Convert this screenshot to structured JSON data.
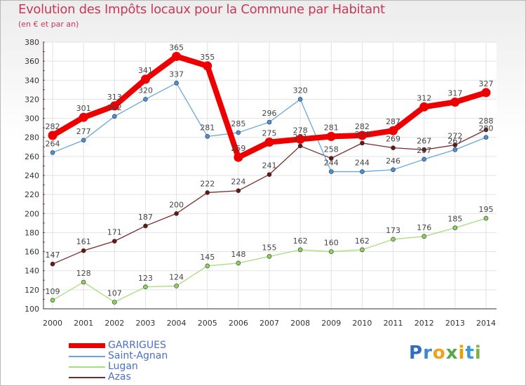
{
  "header": {
    "title": "Evolution des Impôts locaux pour la Commune par Habitant",
    "subtitle": "(en € et par an)"
  },
  "logo": {
    "text": "Proxiti"
  },
  "chart_data": {
    "type": "line",
    "title": "Evolution des Impôts locaux pour la Commune par Habitant",
    "subtitle": "(en € et par an)",
    "x": [
      "2000",
      "2001",
      "2002",
      "2003",
      "2004",
      "2005",
      "2006",
      "2007",
      "2008",
      "2009",
      "2010",
      "2011",
      "2012",
      "2013",
      "2014"
    ],
    "ylim": [
      100,
      380
    ],
    "yticks": [
      100,
      120,
      140,
      160,
      180,
      200,
      220,
      240,
      260,
      280,
      300,
      320,
      340,
      360,
      380
    ],
    "grid": true,
    "legend_position": "bottom-left",
    "series": [
      {
        "name": "GARRIGUES",
        "color": "#ee0000",
        "line_color": "#ee0000",
        "emphasis": true,
        "values": [
          282,
          301,
          313,
          341,
          365,
          355,
          259,
          275,
          278,
          281,
          282,
          287,
          312,
          317,
          327
        ],
        "labels": [
          "282",
          "301",
          "313",
          "341",
          "365",
          "355",
          "259",
          "275",
          "278",
          "281",
          "282",
          "287",
          "312",
          "317",
          "327"
        ]
      },
      {
        "name": "Saint-Agnan",
        "color": "#4a90d9",
        "line_color": "#6aa6dc",
        "values": [
          264,
          277,
          302,
          320,
          337,
          281,
          285,
          296,
          320,
          244,
          244,
          246,
          257,
          267,
          280
        ],
        "labels": [
          "264",
          "277",
          "302",
          "320",
          "337",
          "281",
          "285",
          "296",
          "320",
          "244",
          "244",
          "246",
          "257",
          "267",
          "280"
        ]
      },
      {
        "name": "Lugan",
        "color": "#8cd35a",
        "line_color": "#a6dd7e",
        "values": [
          109,
          128,
          107,
          123,
          124,
          145,
          148,
          155,
          162,
          160,
          162,
          173,
          176,
          185,
          195
        ],
        "labels": [
          "109",
          "128",
          "107",
          "123",
          "124",
          "145",
          "148",
          "155",
          "162",
          "160",
          "162",
          "173",
          "176",
          "185",
          "195"
        ]
      },
      {
        "name": "Azas",
        "color": "#6b1515",
        "line_color": "#7a2a2a",
        "values": [
          147,
          161,
          171,
          187,
          200,
          222,
          224,
          241,
          271,
          258,
          274,
          269,
          267,
          272,
          288
        ],
        "labels": [
          "147",
          "161",
          "171",
          "187",
          "200",
          "222",
          "224",
          "241",
          "271",
          "258",
          "274",
          "269",
          "267",
          "272",
          "288"
        ]
      }
    ]
  }
}
